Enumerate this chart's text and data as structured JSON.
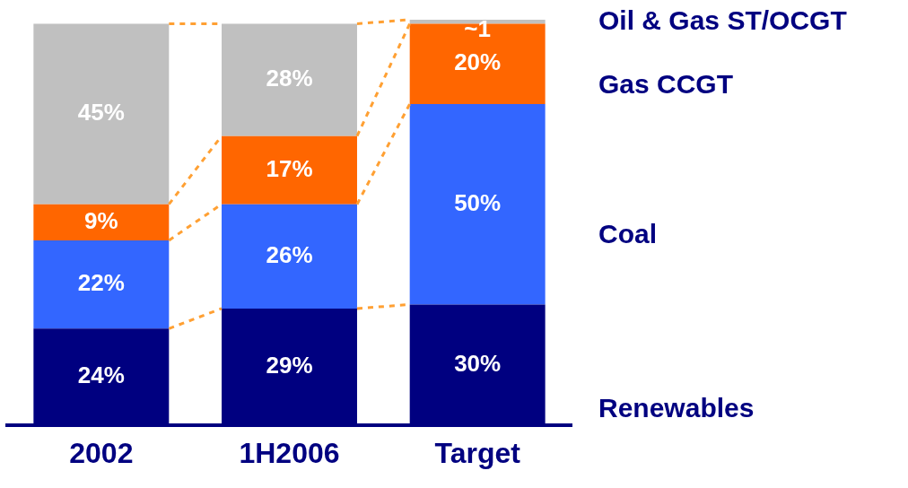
{
  "chart_data": {
    "type": "bar",
    "stacked": true,
    "categories": [
      "2002",
      "1H2006",
      "Target"
    ],
    "series": [
      {
        "name": "Renewables",
        "color": "#000080",
        "values": [
          24,
          29,
          30
        ],
        "value_labels": [
          "24%",
          "29%",
          "30%"
        ]
      },
      {
        "name": "Coal",
        "color": "#3366ff",
        "values": [
          22,
          26,
          50
        ],
        "value_labels": [
          "22%",
          "26%",
          "50%"
        ]
      },
      {
        "name": "Gas CCGT",
        "color": "#ff6600",
        "values": [
          9,
          17,
          20
        ],
        "value_labels": [
          "9%",
          "17%",
          "20%"
        ]
      },
      {
        "name": "Oil & Gas ST/OCGT",
        "color": "#c0c0c0",
        "values": [
          45,
          28,
          1
        ],
        "value_labels": [
          "45%",
          "28%",
          "~1"
        ]
      }
    ]
  }
}
